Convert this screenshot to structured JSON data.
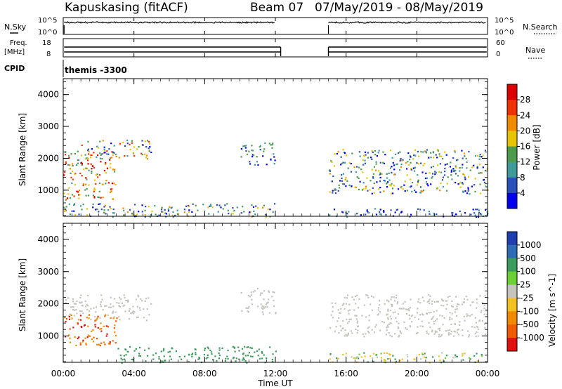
{
  "header": {
    "station": "Kapuskasing (fitACF)",
    "beam": "Beam 07",
    "date_range": "07/May/2019 - 08/May/2019"
  },
  "summary_panels": {
    "nsky_label": "N.Sky",
    "nsky_ticks": [
      "10^5",
      "10^0"
    ],
    "nsearch_label": "N.Search",
    "nsearch_ticks": [
      "10^5",
      "10^0"
    ],
    "freq_label_line1": "Freq.",
    "freq_label_line2": "[MHz]",
    "freq_ticks": [
      "18",
      "8"
    ],
    "nave_label": "Nave",
    "nave_ticks": [
      "60",
      "0"
    ],
    "cpid_label": "CPID",
    "cpid_value": "themis -3300"
  },
  "colors": {
    "power_scale": [
      "#0000ee",
      "#2a4fb8",
      "#3f9a9a",
      "#4c9a4c",
      "#e8c400",
      "#f28a00",
      "#ee3300",
      "#dd0000"
    ],
    "velocity_scale": [
      "#1f3fb0",
      "#2d6bb5",
      "#3c9a5c",
      "#6ccf33",
      "#c4c4bc",
      "#f2c020",
      "#f28a00",
      "#f05a00",
      "#e01010"
    ]
  },
  "chart_data": [
    {
      "type": "heatmap",
      "title": "",
      "xlabel": "",
      "ylabel": "Slant Range [km]",
      "xlim": [
        "00:00",
        "00:00"
      ],
      "ylim": [
        180,
        4500
      ],
      "x_ticks": [
        "00:00",
        "04:00",
        "08:00",
        "12:00",
        "16:00",
        "20:00",
        "00:00"
      ],
      "y_ticks": [
        1000,
        2000,
        3000,
        4000
      ],
      "colorbar_label": "Power [dB]",
      "colorbar_ticks": [
        "4",
        "8",
        "12",
        "16",
        "20",
        "24",
        "28"
      ],
      "data_gap": [
        "12:00",
        "15:00"
      ],
      "regions": [
        {
          "name": "early evening echoes",
          "time": [
            "00:00",
            "03:00"
          ],
          "range_km": [
            700,
            2300
          ],
          "power_db": [
            12,
            28
          ]
        },
        {
          "name": "upper band",
          "time": [
            "01:00",
            "05:00"
          ],
          "range_km": [
            2000,
            2600
          ],
          "power_db": [
            4,
            24
          ]
        },
        {
          "name": "near range ground scatter",
          "time": [
            "00:00",
            "12:00"
          ],
          "range_km": [
            180,
            600
          ],
          "power_db": [
            4,
            20
          ]
        },
        {
          "name": "10-12 UT band",
          "time": [
            "10:00",
            "12:00"
          ],
          "range_km": [
            1800,
            2500
          ],
          "power_db": [
            4,
            16
          ]
        },
        {
          "name": "post-gap banded echoes",
          "time": [
            "15:00",
            "24:00"
          ],
          "range_km": [
            900,
            2300
          ],
          "power_db": [
            4,
            20
          ]
        },
        {
          "name": "post-gap near range",
          "time": [
            "15:00",
            "24:00"
          ],
          "range_km": [
            180,
            450
          ],
          "power_db": [
            4,
            12
          ]
        }
      ]
    },
    {
      "type": "heatmap",
      "title": "",
      "xlabel": "Time UT",
      "ylabel": "Slant Range [km]",
      "xlim": [
        "00:00",
        "00:00"
      ],
      "ylim": [
        180,
        4500
      ],
      "x_ticks": [
        "00:00",
        "04:00",
        "08:00",
        "12:00",
        "16:00",
        "20:00",
        "00:00"
      ],
      "y_ticks": [
        1000,
        2000,
        3000,
        4000
      ],
      "colorbar_label": "Velocity [m s^-1]",
      "colorbar_ticks": [
        "1000",
        "500",
        "100",
        "25",
        "-25",
        "-100",
        "-500",
        "-1000"
      ],
      "data_gap": [
        "12:00",
        "15:00"
      ],
      "regions": [
        {
          "name": "ground scatter",
          "time": [
            "00:00",
            "05:00"
          ],
          "range_km": [
            1500,
            2300
          ],
          "velocity": [
            -25,
            25
          ]
        },
        {
          "name": "receding flow",
          "time": [
            "00:00",
            "03:00"
          ],
          "range_km": [
            700,
            1700
          ],
          "velocity": [
            -1000,
            -100
          ]
        },
        {
          "name": "near range green",
          "time": [
            "03:00",
            "12:00"
          ],
          "range_km": [
            180,
            700
          ],
          "velocity": [
            25,
            100
          ]
        },
        {
          "name": "10-12 UT band",
          "time": [
            "10:00",
            "12:00"
          ],
          "range_km": [
            1700,
            2500
          ],
          "velocity": [
            -25,
            25
          ]
        },
        {
          "name": "post-gap band",
          "time": [
            "15:00",
            "24:00"
          ],
          "range_km": [
            1000,
            2300
          ],
          "velocity": [
            -25,
            25
          ]
        },
        {
          "name": "post-gap near range",
          "time": [
            "15:00",
            "24:00"
          ],
          "range_km": [
            180,
            500
          ],
          "velocity": [
            -100,
            100
          ]
        }
      ]
    }
  ]
}
